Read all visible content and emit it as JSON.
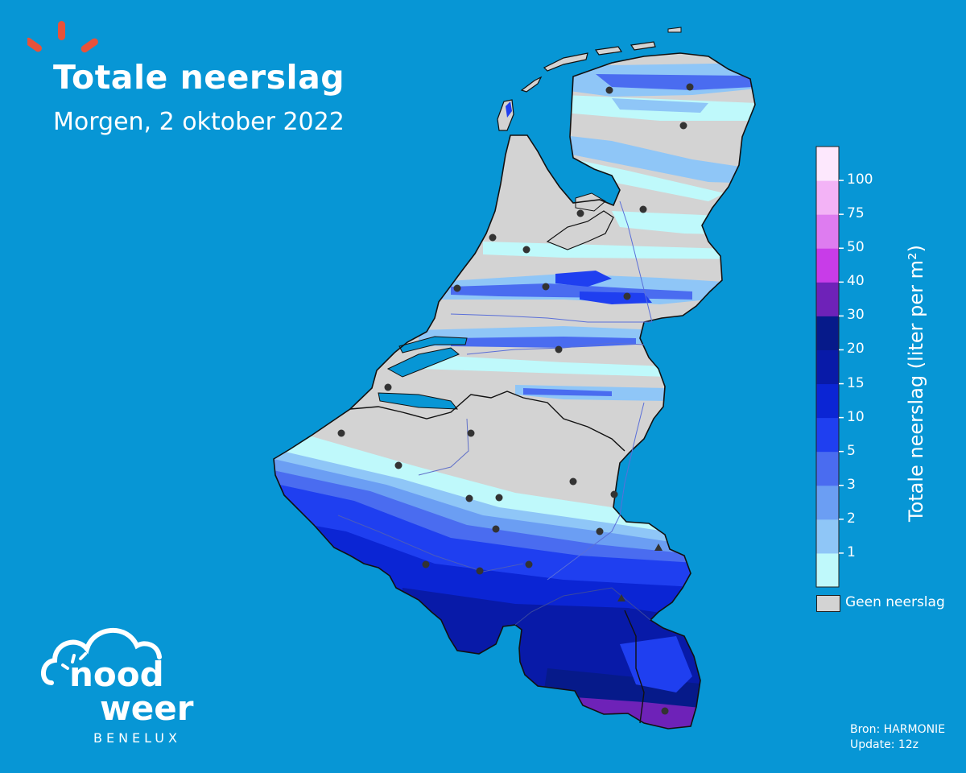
{
  "header": {
    "title": "Totale neerslag",
    "subtitle": "Morgen, 2 oktober 2022"
  },
  "legend": {
    "colorbar_label": "Totale neerslag (liter per m²)",
    "bins": [
      {
        "from": 0,
        "to": 1,
        "color": "#bff9fb"
      },
      {
        "from": 1,
        "to": 2,
        "color": "#8fc6f7"
      },
      {
        "from": 2,
        "to": 3,
        "color": "#6b9ef3"
      },
      {
        "from": 3,
        "to": 5,
        "color": "#4a6cf0"
      },
      {
        "from": 5,
        "to": 10,
        "color": "#1f3ff0"
      },
      {
        "from": 10,
        "to": 15,
        "color": "#0b25d4"
      },
      {
        "from": 15,
        "to": 20,
        "color": "#081aa8"
      },
      {
        "from": 20,
        "to": 30,
        "color": "#061a8a"
      },
      {
        "from": 30,
        "to": 40,
        "color": "#6e22b8"
      },
      {
        "from": 40,
        "to": 50,
        "color": "#c83ce8"
      },
      {
        "from": 50,
        "to": 75,
        "color": "#de7cf0"
      },
      {
        "from": 75,
        "to": 100,
        "color": "#f3b3f6"
      },
      {
        "from": 100,
        "to": 100,
        "color": "#fde8fd"
      }
    ],
    "ticks": [
      "1",
      "2",
      "3",
      "5",
      "10",
      "15",
      "20",
      "30",
      "40",
      "50",
      "75",
      "100"
    ],
    "no_precip_label": "Geen neerslag",
    "no_precip_color": "#d3d3d3"
  },
  "source": {
    "line1": "Bron: HARMONIE",
    "line2": "Update: 12z"
  },
  "brand": {
    "word1": "nood",
    "word2": "weer",
    "word3": "BENELUX",
    "accent": "#e8523a",
    "background": "#0796d5"
  }
}
